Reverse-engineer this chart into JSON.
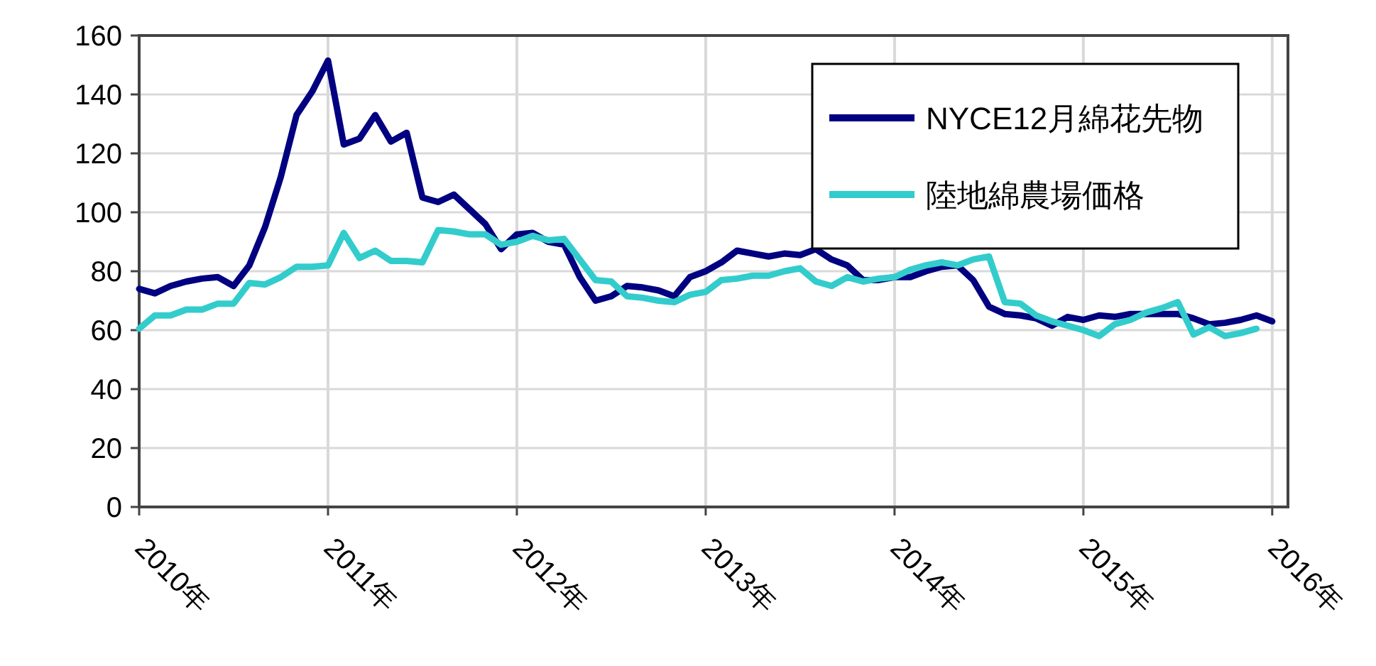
{
  "chart_data": {
    "type": "line",
    "x": [
      "2010-01",
      "2010-02",
      "2010-03",
      "2010-04",
      "2010-05",
      "2010-06",
      "2010-07",
      "2010-08",
      "2010-09",
      "2010-10",
      "2010-11",
      "2010-12",
      "2011-01",
      "2011-02",
      "2011-03",
      "2011-04",
      "2011-05",
      "2011-06",
      "2011-07",
      "2011-08",
      "2011-09",
      "2011-10",
      "2011-11",
      "2011-12",
      "2012-01",
      "2012-02",
      "2012-03",
      "2012-04",
      "2012-05",
      "2012-06",
      "2012-07",
      "2012-08",
      "2012-09",
      "2012-10",
      "2012-11",
      "2012-12",
      "2013-01",
      "2013-02",
      "2013-03",
      "2013-04",
      "2013-05",
      "2013-06",
      "2013-07",
      "2013-08",
      "2013-09",
      "2013-10",
      "2013-11",
      "2013-12",
      "2014-01",
      "2014-02",
      "2014-03",
      "2014-04",
      "2014-05",
      "2014-06",
      "2014-07",
      "2014-08",
      "2014-09",
      "2014-10",
      "2014-11",
      "2014-12",
      "2015-01",
      "2015-02",
      "2015-03",
      "2015-04",
      "2015-05",
      "2015-06",
      "2015-07",
      "2015-08",
      "2015-09",
      "2015-10",
      "2015-11",
      "2015-12",
      "2016-01"
    ],
    "series": [
      {
        "name": "NYCE12月綿花先物",
        "color": "#000080",
        "values": [
          74,
          72.5,
          75,
          76.5,
          77.5,
          78,
          75,
          82,
          95,
          112,
          133,
          141,
          151.5,
          123,
          125,
          133,
          124,
          127,
          105,
          103.5,
          106,
          101,
          96,
          87.5,
          92.5,
          93,
          90,
          89,
          78,
          70,
          71.5,
          75,
          74.5,
          73.5,
          71.5,
          78,
          80,
          83,
          87,
          86,
          85,
          86,
          85.5,
          87.5,
          84,
          82,
          77,
          77,
          78,
          78,
          80,
          81.5,
          82,
          77,
          68,
          65.5,
          65,
          64,
          61.5,
          64.5,
          63.5,
          65,
          64.5,
          65.5,
          65.5,
          65.5,
          65.5,
          64,
          62,
          62.5,
          63.5,
          65,
          63
        ]
      },
      {
        "name": "陸地綿農場価格",
        "color": "#33cccc",
        "values": [
          60.5,
          65,
          65,
          67,
          67,
          69,
          69,
          76,
          75.5,
          78,
          81.5,
          81.5,
          82,
          93,
          84.5,
          87,
          83.5,
          83.5,
          83,
          94,
          93.5,
          92.5,
          92.5,
          89,
          90,
          92,
          90.5,
          91,
          84,
          77,
          76.5,
          71.5,
          71,
          70,
          69.5,
          72,
          73,
          77,
          77.5,
          78.5,
          78.5,
          80,
          81,
          76.5,
          75,
          78,
          76.5,
          77.5,
          78,
          80.5,
          82,
          83,
          82,
          84,
          85,
          69.5,
          69,
          65,
          63,
          61.5,
          60,
          58,
          62,
          63.5,
          66,
          67.5,
          69.5,
          58.5,
          61,
          58,
          59,
          60.5,
          null
        ]
      }
    ],
    "xlim": [
      "2010-01",
      "2016-02"
    ],
    "xticks": [
      {
        "value": "2010-01",
        "label": "2010年"
      },
      {
        "value": "2011-01",
        "label": "2011年"
      },
      {
        "value": "2012-01",
        "label": "2012年"
      },
      {
        "value": "2013-01",
        "label": "2013年"
      },
      {
        "value": "2014-01",
        "label": "2014年"
      },
      {
        "value": "2015-01",
        "label": "2015年"
      },
      {
        "value": "2016-01",
        "label": "2016年"
      }
    ],
    "ylim": [
      0,
      160
    ],
    "yticks": [
      0,
      20,
      40,
      60,
      80,
      100,
      120,
      140,
      160
    ],
    "grid": true,
    "legend": "top right",
    "line_style": "solid",
    "marker": "none"
  }
}
